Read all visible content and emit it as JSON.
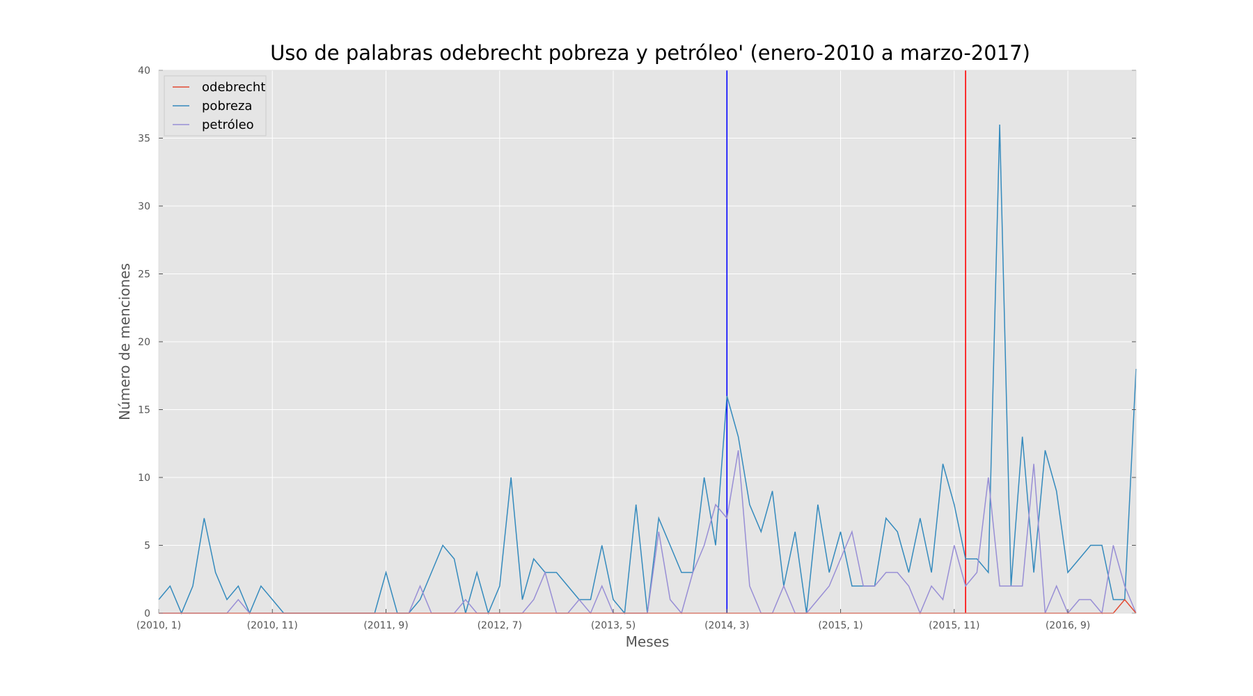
{
  "chart_data": {
    "type": "line",
    "title": "Uso de palabras odebrecht pobreza y petróleo' (enero-2010 a marzo-2017)",
    "xlabel": "Meses",
    "ylabel": "Número de menciones",
    "ylim": [
      0,
      40
    ],
    "yticks": [
      "0",
      "5",
      "10",
      "15",
      "20",
      "25",
      "30",
      "35",
      "40"
    ],
    "xticks": [
      {
        "label": "(2010, 1)",
        "month": "2010-01"
      },
      {
        "label": "(2010, 11)",
        "month": "2010-11"
      },
      {
        "label": "(2011, 9)",
        "month": "2011-09"
      },
      {
        "label": "(2012, 7)",
        "month": "2012-07"
      },
      {
        "label": "(2013, 5)",
        "month": "2013-05"
      },
      {
        "label": "(2014, 3)",
        "month": "2014-03"
      },
      {
        "label": "(2015, 1)",
        "month": "2015-01"
      },
      {
        "label": "(2015, 11)",
        "month": "2015-11"
      },
      {
        "label": "(2016, 9)",
        "month": "2016-09"
      }
    ],
    "months": [
      "2010-01",
      "2010-02",
      "2010-03",
      "2010-04",
      "2010-05",
      "2010-06",
      "2010-07",
      "2010-08",
      "2010-09",
      "2010-10",
      "2010-11",
      "2010-12",
      "2011-01",
      "2011-02",
      "2011-03",
      "2011-04",
      "2011-05",
      "2011-06",
      "2011-07",
      "2011-08",
      "2011-09",
      "2011-10",
      "2011-11",
      "2011-12",
      "2012-01",
      "2012-02",
      "2012-03",
      "2012-04",
      "2012-05",
      "2012-06",
      "2012-07",
      "2012-08",
      "2012-09",
      "2012-10",
      "2012-11",
      "2012-12",
      "2013-01",
      "2013-02",
      "2013-03",
      "2013-04",
      "2013-05",
      "2013-06",
      "2013-07",
      "2013-08",
      "2013-09",
      "2013-10",
      "2013-11",
      "2013-12",
      "2014-01",
      "2014-02",
      "2014-03",
      "2014-04",
      "2014-05",
      "2014-06",
      "2014-07",
      "2014-08",
      "2014-09",
      "2014-10",
      "2014-11",
      "2014-12",
      "2015-01",
      "2015-02",
      "2015-03",
      "2015-04",
      "2015-05",
      "2015-06",
      "2015-07",
      "2015-08",
      "2015-09",
      "2015-10",
      "2015-11",
      "2015-12",
      "2016-01",
      "2016-02",
      "2016-03",
      "2016-04",
      "2016-05",
      "2016-06",
      "2016-07",
      "2016-08",
      "2016-09",
      "2016-10",
      "2016-11",
      "2016-12",
      "2017-01",
      "2017-02",
      "2017-03"
    ],
    "series": [
      {
        "name": "odebrecht",
        "color": "#e24a33",
        "values": [
          0,
          0,
          0,
          0,
          0,
          0,
          0,
          0,
          0,
          0,
          0,
          0,
          0,
          0,
          0,
          0,
          0,
          0,
          0,
          0,
          0,
          0,
          0,
          0,
          0,
          0,
          0,
          0,
          0,
          0,
          0,
          0,
          0,
          0,
          0,
          0,
          0,
          0,
          0,
          0,
          0,
          0,
          0,
          0,
          0,
          0,
          0,
          0,
          0,
          0,
          0,
          0,
          0,
          0,
          0,
          0,
          0,
          0,
          0,
          0,
          0,
          0,
          0,
          0,
          0,
          0,
          0,
          0,
          0,
          0,
          0,
          0,
          0,
          0,
          0,
          0,
          0,
          0,
          0,
          0,
          0,
          0,
          0,
          0,
          0,
          1,
          0
        ]
      },
      {
        "name": "pobreza",
        "color": "#348abd",
        "values": [
          1,
          2,
          0,
          2,
          7,
          3,
          1,
          2,
          0,
          2,
          1,
          0,
          0,
          0,
          0,
          0,
          0,
          0,
          0,
          0,
          3,
          0,
          0,
          1,
          3,
          5,
          4,
          0,
          3,
          0,
          2,
          10,
          1,
          4,
          3,
          3,
          2,
          1,
          1,
          5,
          1,
          0,
          8,
          0,
          7,
          5,
          3,
          3,
          10,
          5,
          16,
          13,
          8,
          6,
          9,
          2,
          6,
          0,
          8,
          3,
          6,
          2,
          2,
          2,
          7,
          6,
          3,
          7,
          3,
          11,
          8,
          4,
          4,
          3,
          36,
          2,
          13,
          3,
          12,
          9,
          3,
          4,
          5,
          5,
          1,
          1,
          18
        ]
      },
      {
        "name": "petróleo",
        "color": "#988ed5",
        "values": [
          0,
          0,
          0,
          0,
          0,
          0,
          0,
          1,
          0,
          0,
          0,
          0,
          0,
          0,
          0,
          0,
          0,
          0,
          0,
          0,
          0,
          0,
          0,
          2,
          0,
          0,
          0,
          1,
          0,
          0,
          0,
          0,
          0,
          1,
          3,
          0,
          0,
          1,
          0,
          2,
          0,
          0,
          0,
          0,
          6,
          1,
          0,
          3,
          5,
          8,
          7,
          12,
          2,
          0,
          0,
          2,
          0,
          0,
          1,
          2,
          4,
          6,
          2,
          2,
          3,
          3,
          2,
          0,
          2,
          1,
          5,
          2,
          3,
          10,
          2,
          2,
          2,
          11,
          0,
          2,
          0,
          1,
          1,
          0,
          5,
          2,
          0
        ]
      }
    ],
    "vlines": [
      {
        "month": "2014-03",
        "color": "#0000ff"
      },
      {
        "month": "2015-12",
        "color": "#ff0000"
      }
    ],
    "grid": true,
    "legend_position": "top-left",
    "background": "#e5e5e5"
  }
}
